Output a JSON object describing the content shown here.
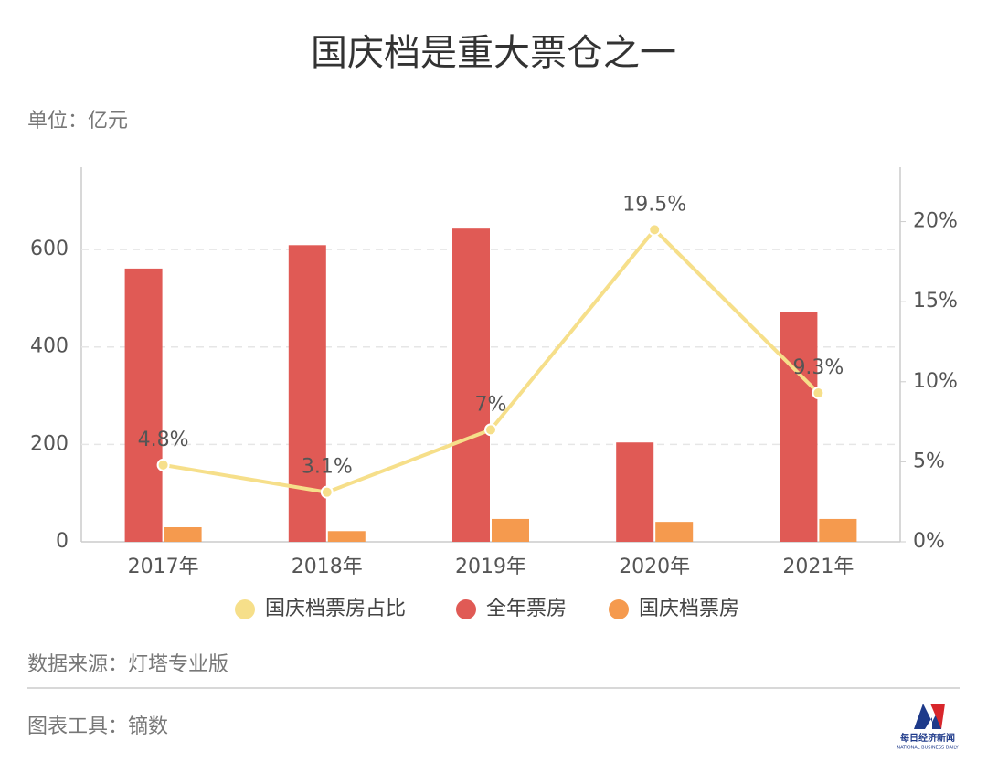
{
  "chart_data": {
    "type": "bar",
    "title": "国庆档是重大票仓之一",
    "unit_label": "单位：亿元",
    "source": "数据来源：灯塔专业版",
    "tool": "图表工具：镝数",
    "categories": [
      "2017年",
      "2018年",
      "2019年",
      "2020年",
      "2021年"
    ],
    "series": [
      {
        "name": "国庆档票房占比",
        "type": "line",
        "axis": "y2",
        "color": "#f6df8a",
        "values": [
          4.8,
          3.1,
          7,
          19.5,
          9.3
        ],
        "value_labels": [
          "4.8%",
          "3.1%",
          "7%",
          "19.5%",
          "9.3%"
        ]
      },
      {
        "name": "全年票房",
        "type": "bar",
        "color": "#e05a55",
        "values": [
          561,
          609,
          643,
          204,
          472
        ]
      },
      {
        "name": "国庆档票房",
        "type": "bar",
        "color": "#f59a4e",
        "values": [
          30,
          22,
          47,
          41,
          47
        ]
      }
    ],
    "ylim": [
      0,
      769
    ],
    "yticks": [
      0,
      200,
      400,
      600
    ],
    "y2lim": [
      0,
      23.4
    ],
    "y2ticks": [
      {
        "value": 0,
        "label": "0%"
      },
      {
        "value": 5,
        "label": "5%"
      },
      {
        "value": 10,
        "label": "10%"
      },
      {
        "value": 15,
        "label": "15%"
      },
      {
        "value": 20,
        "label": "20%"
      }
    ],
    "grid": true,
    "legend": "bottom"
  },
  "logo": {
    "name": "每日经济新闻",
    "subtitle": "NATIONAL BUSINESS DAILY"
  }
}
